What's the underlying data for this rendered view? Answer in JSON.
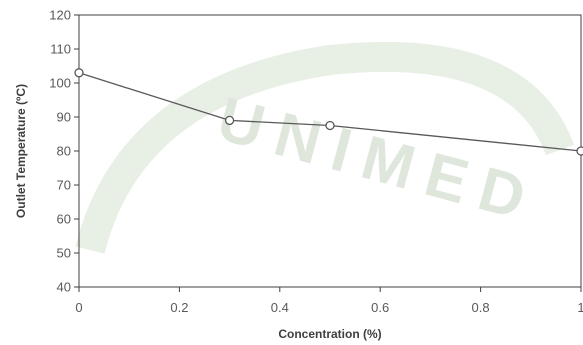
{
  "chart_data": {
    "type": "line",
    "title": "",
    "xlabel": "Concentration (%)",
    "ylabel": "Outlet Temperature (ºC)",
    "xlim": [
      0,
      1
    ],
    "ylim": [
      40,
      120
    ],
    "xticks": [
      0,
      0.2,
      0.4,
      0.6,
      0.8,
      1
    ],
    "xtick_labels": [
      "0",
      "0.2",
      "0.4",
      "0.6",
      "0.8",
      "1"
    ],
    "yticks": [
      40,
      50,
      60,
      70,
      80,
      90,
      100,
      110,
      120
    ],
    "ytick_labels": [
      "40",
      "50",
      "60",
      "70",
      "80",
      "90",
      "100",
      "110",
      "120"
    ],
    "grid": false,
    "legend": "none",
    "series": [
      {
        "x": [
          0,
          0.3,
          0.5,
          1
        ],
        "y": [
          103,
          89,
          87.5,
          80
        ],
        "marker": "circle-open",
        "color": "#595959"
      }
    ]
  },
  "watermark": {
    "text": "UNIMED",
    "color": "#dfe7dc"
  }
}
